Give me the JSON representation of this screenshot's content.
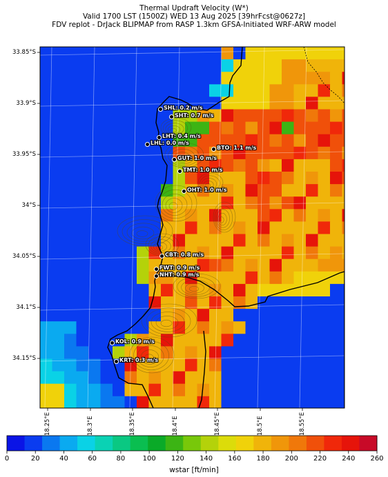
{
  "header": {
    "line1": "Thermal Updraft Velocity (W*)",
    "line2": "Valid 1700 LST (1500Z) WED 13 Aug 2025 [39hrFcst@0627z]",
    "line3": "FDV replot - DrJack BLIPMAP from RASP 1.3km GFSA-Initiated WRF-ARW model"
  },
  "map": {
    "lat_labels": [
      "33.85°S",
      "33.9°S",
      "33.95°S",
      "34°S",
      "34.05°S",
      "34.1°S",
      "34.15°S"
    ],
    "lon_labels": [
      "18.25°E",
      "18.3°E",
      "18.35°E",
      "18.4°E",
      "18.45°E",
      "18.5°E",
      "18.55°E"
    ],
    "stations": [
      {
        "label": "SHL: 0.2 m/s"
      },
      {
        "label": "SHT: 0.7 m/s"
      },
      {
        "label": "LHT: 0.4 m/s"
      },
      {
        "label": "LHL: 0.0 m/s"
      },
      {
        "label": "BTO: 1.1 m/s"
      },
      {
        "label": "GUT: 1.0 m/s"
      },
      {
        "label": "TMT: 1.0 m/s"
      },
      {
        "label": "OHT: 1.0 m/s"
      },
      {
        "label": "CBT: 0.8 m/s"
      },
      {
        "label": "FWT: 0.9 m/s"
      },
      {
        "label": "NHT: 0.9 m/s"
      },
      {
        "label": "KOL: 0.9 m/s"
      },
      {
        "label": "KRT: 0.3 m/s"
      }
    ]
  },
  "colorbar": {
    "label": "wstar [ft/min]",
    "ticks": [
      "0",
      "20",
      "40",
      "60",
      "80",
      "100",
      "120",
      "140",
      "160",
      "180",
      "200",
      "220",
      "240",
      "260"
    ],
    "colors": [
      "#0a14e6",
      "#0a3cf0",
      "#0a78f0",
      "#0aaaf0",
      "#0ad2e6",
      "#0ad2b4",
      "#0ac882",
      "#0abe50",
      "#0aaa28",
      "#3cb414",
      "#78c80a",
      "#b4d20a",
      "#dcdc0a",
      "#f0d20a",
      "#f0b40a",
      "#f0960a",
      "#f0780a",
      "#f0500a",
      "#f0280a",
      "#e6140a",
      "#c80a28"
    ]
  }
}
